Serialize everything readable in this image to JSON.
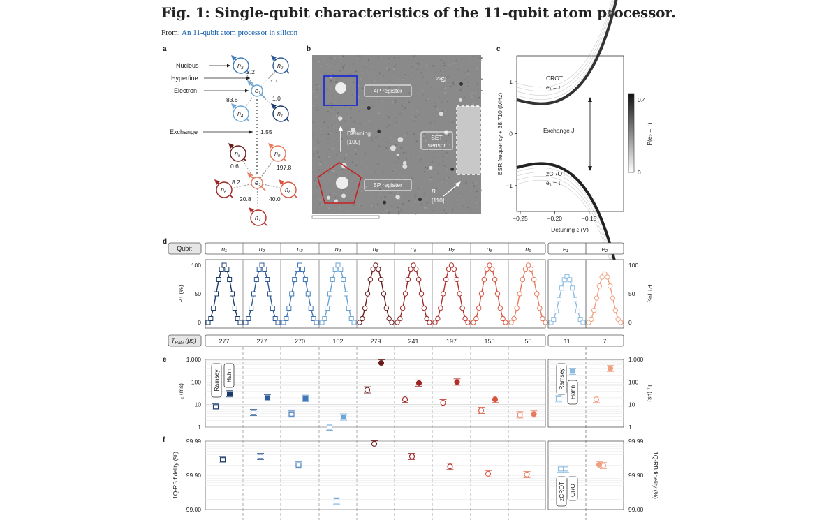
{
  "title": "Fig. 1: Single-qubit characteristics of the 11-qubit atom processor.",
  "from_prefix": "From: ",
  "from_link": "An 11-qubit atom processor in silicon",
  "panels": [
    "a",
    "b",
    "c",
    "d",
    "e",
    "f"
  ],
  "a": {
    "labels": [
      "Nucleus",
      "Hyperfine",
      "Electron",
      "Exchange"
    ],
    "nodes": [
      {
        "id": "n3",
        "sub": "3",
        "base": "n",
        "color": "#3e78b8"
      },
      {
        "id": "n2",
        "sub": "2",
        "base": "n",
        "color": "#2e5a96"
      },
      {
        "id": "e1",
        "sub": "1",
        "base": "e",
        "color": "#6aa5d6"
      },
      {
        "id": "n4",
        "sub": "4",
        "base": "n",
        "color": "#6aa5d6"
      },
      {
        "id": "n1",
        "sub": "1",
        "base": "n",
        "color": "#1b3a6b"
      },
      {
        "id": "n5",
        "sub": "5",
        "base": "n",
        "color": "#6b1a1a"
      },
      {
        "id": "n9",
        "sub": "9",
        "base": "n",
        "color": "#e87a5c"
      },
      {
        "id": "e2",
        "sub": "2",
        "base": "e",
        "color": "#e87a5c"
      },
      {
        "id": "n6",
        "sub": "6",
        "base": "n",
        "color": "#9a2424"
      },
      {
        "id": "n8",
        "sub": "8",
        "base": "n",
        "color": "#d9533f"
      },
      {
        "id": "n7",
        "sub": "7",
        "base": "n",
        "color": "#b32f2a"
      }
    ],
    "couplings": [
      "2.2",
      "1.1",
      "83.6",
      "1.0",
      "1.55",
      "0.6",
      "197.8",
      "8.2",
      "20.8",
      "40.0"
    ]
  },
  "b": {
    "sample_label": "²⁸Si",
    "reg_4p": "4P register",
    "reg_5p": "5P register",
    "detuning": "Detuning",
    "detuning_dir": "[100]",
    "set_sensor_1": "SET",
    "set_sensor_2": "sensor",
    "b_field": "B",
    "b_dir": "[110]"
  },
  "c": {
    "chart_data": {
      "type": "line",
      "xlabel": "Detuning ε (V)",
      "ylabel": "ESR frequency + 38,710 (MHz)",
      "xlim": [
        -0.255,
        -0.1
      ],
      "ylim": [
        -1.5,
        1.5
      ],
      "xticks": [
        "-0.25",
        "-0.20",
        "-0.15"
      ],
      "yticks": [
        "-1",
        "0",
        "1"
      ],
      "colorbar_label": "P(e₂ = ↑)",
      "colorbar_ticks": [
        "0",
        "0.4"
      ],
      "annotations": [
        "CROT",
        "e₁ = ↑",
        "Exchange J",
        "zCROT",
        "e₁ = ↓"
      ]
    }
  },
  "d": {
    "row_label": "Qubit",
    "qubits": [
      "n₁",
      "n₂",
      "n₃",
      "n₄",
      "n₅",
      "n₆",
      "n₇",
      "n₈",
      "n₉",
      "e₁",
      "e₂"
    ],
    "colors": [
      "#1b3a6b",
      "#2e5a96",
      "#3e78b8",
      "#6aa5d6",
      "#6b1a1a",
      "#9a2424",
      "#b32f2a",
      "#d9533f",
      "#e87a5c",
      "#8bbbe0",
      "#f0a080"
    ],
    "ylabel": "P↑ (%)",
    "yticks": [
      "0",
      "50",
      "100"
    ],
    "trabi_label": "T",
    "trabi_sub": "Rabi",
    "trabi_unit": " (μs)",
    "trabi": [
      "277",
      "277",
      "270",
      "102",
      "279",
      "241",
      "197",
      "155",
      "55",
      "11",
      "7"
    ],
    "chart_data": {
      "type": "line",
      "ylabel": "P↑ (%)",
      "ylim": [
        0,
        100
      ],
      "series_peak": [
        100,
        100,
        100,
        100,
        100,
        100,
        100,
        100,
        100,
        80,
        85
      ]
    }
  },
  "e": {
    "chart_data": {
      "type": "scatter",
      "ylabel_left": "T₂ (ms)",
      "ylabel_right": "T₂ (μs)",
      "yticks": [
        "1",
        "10",
        "100",
        "1,000"
      ],
      "legend": [
        "Ramsey",
        "Hahn"
      ],
      "ramsey": [
        8,
        4.5,
        3.8,
        1,
        45,
        17,
        12,
        5.5,
        3.5,
        18,
        17
      ],
      "hahn": [
        30,
        20,
        19,
        2.8,
        700,
        90,
        100,
        17,
        3.8,
        300,
        400
      ]
    }
  },
  "f": {
    "chart_data": {
      "type": "scatter",
      "ylabel": "1Q-RB fidelity (%)",
      "yticks": [
        "99.00",
        "99.90",
        "99.99"
      ],
      "legend": [
        "zCROT",
        "CROT"
      ],
      "fidelity": [
        99.965,
        99.972,
        99.95,
        99.44,
        99.988,
        99.972,
        99.945,
        99.91,
        99.905,
        99.935,
        99.948
      ],
      "fidelity_zcrot": [
        99.935
      ],
      "fidelity_e2_alt": [
        99.951
      ]
    }
  }
}
